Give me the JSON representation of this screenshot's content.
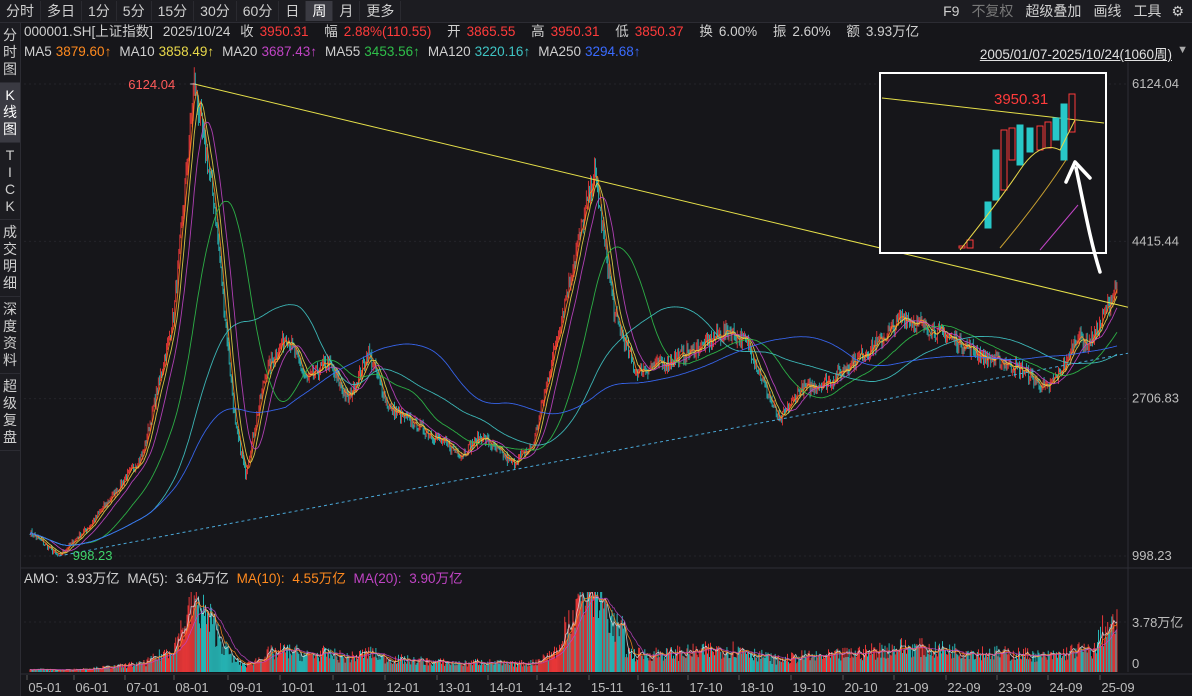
{
  "toolbar": {
    "periods": [
      "分时",
      "多日",
      "1分",
      "5分",
      "15分",
      "30分",
      "60分",
      "日",
      "周",
      "月",
      "更多"
    ],
    "active_period": "周",
    "right_tools": [
      "F9",
      "不复权",
      "超级叠加",
      "画线",
      "工具"
    ]
  },
  "sidebar": {
    "items": [
      {
        "label": "分时图",
        "active": false
      },
      {
        "label": "K线图",
        "active": true
      },
      {
        "label": "TICK",
        "active": false
      },
      {
        "label": "成交明细",
        "active": false
      },
      {
        "label": "深度资料",
        "active": false
      },
      {
        "label": "超级复盘",
        "active": false
      }
    ]
  },
  "quote": {
    "symbol": "000001.SH[上证指数]",
    "date": "2025/10/24",
    "close_label": "收",
    "close": "3950.31",
    "change_label": "幅",
    "change": "2.88%(110.55)",
    "open_label": "开",
    "open": "3865.55",
    "high_label": "高",
    "high": "3950.31",
    "low_label": "低",
    "low": "3850.37",
    "turnover_label": "换",
    "turnover": "6.00%",
    "amplitude_label": "振",
    "amplitude": "2.60%",
    "amount_label": "额",
    "amount": "3.93万亿"
  },
  "ma_legend": [
    {
      "name": "MA5",
      "value": "3879.60↑",
      "color": "#ff8a1f"
    },
    {
      "name": "MA10",
      "value": "3858.49↑",
      "color": "#e8d84a"
    },
    {
      "name": "MA20",
      "value": "3687.43↑",
      "color": "#c044c4"
    },
    {
      "name": "MA55",
      "value": "3453.56↑",
      "color": "#2fbf4a"
    },
    {
      "name": "MA120",
      "value": "3220.16↑",
      "color": "#3fc4c4"
    },
    {
      "name": "MA250",
      "value": "3294.68↑",
      "color": "#3a6bff"
    }
  ],
  "date_range": "2005/01/07-2025/10/24(1060周)",
  "price_axis": [
    "6124.04",
    "4415.44",
    "2706.83",
    "998.23"
  ],
  "annotations": {
    "high": "6124.04",
    "low": "998.23",
    "inset_high": "3950.31"
  },
  "amo_legend": {
    "amo_label": "AMO:",
    "amo_value": "3.93万亿",
    "ma5_label": "MA(5):",
    "ma5_value": "3.64万亿",
    "ma10_label": "MA(10):",
    "ma10_value": "4.55万亿",
    "ma20_label": "MA(20):",
    "ma20_value": "3.90万亿"
  },
  "volume_axis": [
    "3.78万亿",
    "0"
  ],
  "time_axis": [
    "05-01",
    "06-01",
    "07-01",
    "08-01",
    "09-01",
    "10-01",
    "11-01",
    "12-01",
    "13-01",
    "14-01",
    "14-12",
    "15-11",
    "16-11",
    "17-10",
    "18-10",
    "19-10",
    "20-10",
    "21-09",
    "22-09",
    "23-09",
    "24-09",
    "25-09"
  ],
  "colors": {
    "up": "#ff3b3b",
    "down": "#28c8c8",
    "trendline": "#e6e04a",
    "support": "#4aa8d8",
    "background": "#16161a"
  }
}
